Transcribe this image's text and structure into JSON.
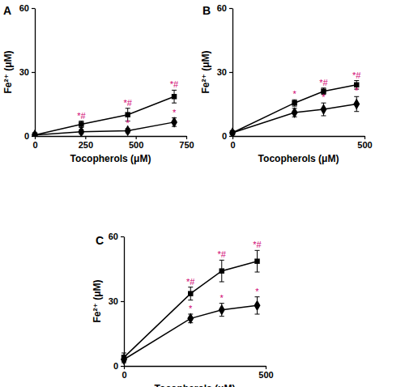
{
  "chart_data": [
    {
      "type": "line",
      "title": "A",
      "x_label": "Tocopherols (μM)",
      "y_label": "Fe²⁺ (μM)",
      "x": [
        0,
        230,
        460,
        690
      ],
      "xlim": [
        0,
        750
      ],
      "xticks": [
        0,
        250,
        500,
        750
      ],
      "ylim": [
        0,
        60
      ],
      "yticks": [
        0,
        30,
        60
      ],
      "series": [
        {
          "color": "#000000",
          "marker": "square",
          "values": [
            0.5,
            5.5,
            10,
            18.5
          ],
          "errors": [
            0.4,
            1.5,
            3,
            3
          ],
          "annotations": [
            null,
            "*#",
            "*#",
            "*#"
          ]
        },
        {
          "color": "#000000",
          "marker": "diamond",
          "values": [
            0.5,
            2,
            2.5,
            6.5
          ],
          "errors": [
            0.3,
            1,
            1,
            2
          ],
          "annotations": [
            null,
            null,
            "*",
            "*"
          ]
        }
      ]
    },
    {
      "type": "line",
      "title": "B",
      "x_label": "Tocopherols (μM)",
      "y_label": "Fe²⁺ (μM)",
      "x": [
        0,
        235,
        345,
        470
      ],
      "xlim": [
        0,
        500
      ],
      "xticks": [
        0,
        500
      ],
      "ylim": [
        0,
        60
      ],
      "yticks": [
        0,
        30,
        60
      ],
      "series": [
        {
          "color": "#000000",
          "marker": "square",
          "values": [
            1.5,
            15.5,
            21,
            24
          ],
          "errors": [
            0.5,
            1.5,
            1.5,
            2
          ],
          "annotations": [
            null,
            "*",
            "*#",
            "*#"
          ]
        },
        {
          "color": "#000000",
          "marker": "diamond",
          "values": [
            1.5,
            11,
            12.5,
            15
          ],
          "errors": [
            0.5,
            2,
            3,
            3.5
          ],
          "annotations": [
            null,
            null,
            "*",
            "*"
          ]
        }
      ]
    },
    {
      "type": "line",
      "title": "C",
      "x_label": "Tocopherols (μM)",
      "y_label": "Fe²⁺ (μM)",
      "x": [
        0,
        235,
        345,
        470
      ],
      "xlim": [
        0,
        500
      ],
      "xticks": [
        0,
        500
      ],
      "ylim": [
        0,
        60
      ],
      "yticks": [
        0,
        30,
        60
      ],
      "series": [
        {
          "color": "#000000",
          "marker": "square",
          "values": [
            4,
            33.5,
            44,
            48.5
          ],
          "errors": [
            2,
            3,
            5,
            5
          ],
          "annotations": [
            null,
            "*#",
            "*#",
            "*#"
          ]
        },
        {
          "color": "#000000",
          "marker": "diamond",
          "values": [
            3,
            22,
            26,
            28
          ],
          "errors": [
            1.5,
            2,
            3,
            4
          ],
          "annotations": [
            null,
            "*",
            "*",
            "*"
          ]
        }
      ]
    }
  ]
}
